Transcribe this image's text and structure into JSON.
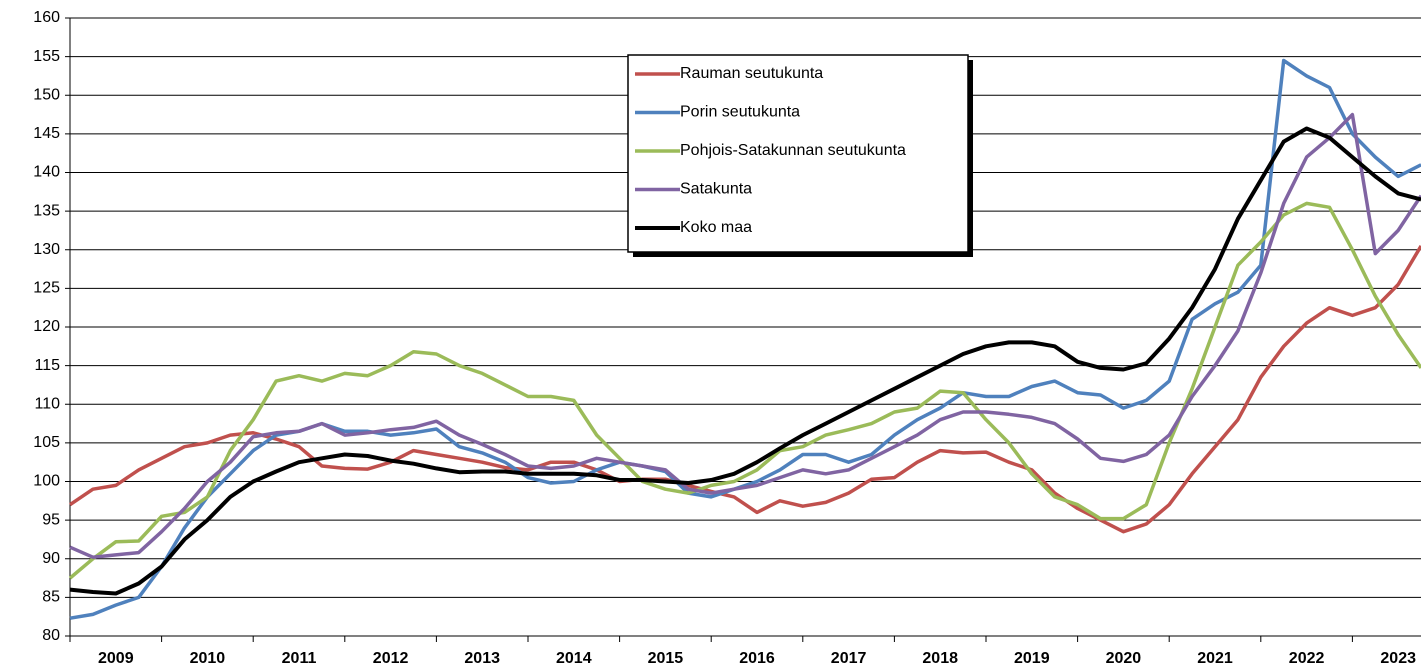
{
  "chart_data": {
    "type": "line",
    "categories": [
      "2009",
      null,
      null,
      null,
      "2010",
      null,
      null,
      null,
      "2011",
      null,
      null,
      null,
      "2012",
      null,
      null,
      null,
      "2013",
      null,
      null,
      null,
      "2014",
      null,
      null,
      null,
      "2015",
      null,
      null,
      null,
      "2016",
      null,
      null,
      null,
      "2017",
      null,
      null,
      null,
      "2018",
      null,
      null,
      null,
      "2019",
      null,
      null,
      null,
      "2020",
      null,
      null,
      null,
      "2021",
      null,
      null,
      null,
      "2022",
      null,
      null,
      null,
      "2023",
      null,
      null,
      null
    ],
    "series": [
      {
        "name": "Rauman seutukunta",
        "color": "#c0504d",
        "values": [
          97,
          99,
          99.5,
          101.5,
          103,
          104.5,
          105,
          106,
          106.3,
          105.5,
          104.5,
          102,
          101.7,
          101.6,
          102.5,
          104,
          103.5,
          103,
          102.5,
          101.8,
          101.5,
          102.5,
          102.5,
          101.5,
          100,
          100.3,
          100.3,
          99.5,
          98.7,
          98,
          96,
          97.5,
          96.8,
          97.3,
          98.5,
          100.3,
          100.5,
          102.5,
          104,
          103.7,
          103.8,
          102.5,
          101.5,
          98.5,
          96.5,
          95,
          93.5,
          94.5,
          97,
          101,
          104.5,
          108,
          113.5,
          117.5,
          120.5,
          122.5,
          121.5,
          122.5,
          125.5,
          130.5
        ]
      },
      {
        "name": "Porin seutukunta",
        "color": "#4f81bd",
        "values": [
          82.3,
          82.8,
          84,
          85,
          89,
          94,
          98,
          101,
          104,
          106,
          106.5,
          107.5,
          106.5,
          106.5,
          106,
          106.3,
          106.8,
          104.5,
          103.7,
          102.5,
          100.5,
          99.8,
          100,
          101.5,
          102.5,
          102,
          101.3,
          98.5,
          98,
          99,
          100,
          101.5,
          103.5,
          103.5,
          102.5,
          103.5,
          106,
          108,
          109.5,
          111.5,
          111,
          111,
          112.3,
          113,
          111.5,
          111.2,
          109.5,
          110.5,
          113,
          121,
          123,
          124.5,
          128,
          154.5,
          152.5,
          151,
          145,
          142,
          139.5,
          141
        ]
      },
      {
        "name": "Pohjois-Satakunnan seutukunta",
        "color": "#9bbb59",
        "values": [
          87.5,
          90,
          92.2,
          92.3,
          95.5,
          96,
          98,
          104,
          108,
          113,
          113.7,
          113,
          114,
          113.7,
          115,
          116.8,
          116.5,
          115,
          114,
          112.5,
          111,
          111,
          110.5,
          106,
          103,
          100,
          99,
          98.5,
          99.5,
          100,
          101.5,
          104,
          104.5,
          106,
          106.7,
          107.5,
          109,
          109.5,
          111.7,
          111.5,
          108,
          105,
          101,
          98,
          97,
          95.2,
          95.2,
          97,
          105,
          112,
          120,
          128,
          131,
          134.5,
          136,
          135.5,
          130,
          124,
          119,
          114.7
        ]
      },
      {
        "name": "Satakunta",
        "color": "#8064a2",
        "values": [
          91.5,
          90.2,
          90.5,
          90.8,
          93.5,
          96.5,
          100,
          102.5,
          105.8,
          106.3,
          106.5,
          107.5,
          106,
          106.3,
          106.7,
          107,
          107.8,
          106,
          104.8,
          103.5,
          102,
          101.7,
          102,
          103,
          102.5,
          102,
          101.5,
          99,
          98.5,
          99,
          99.5,
          100.5,
          101.5,
          101,
          101.5,
          103,
          104.5,
          106,
          108,
          109,
          109,
          108.7,
          108.3,
          107.5,
          105.5,
          103,
          102.6,
          103.5,
          106,
          111,
          115,
          119.5,
          127,
          136,
          142,
          144.5,
          147.5,
          129.5,
          132.5,
          137
        ]
      },
      {
        "name": "Koko maa",
        "color": "#000000",
        "values": [
          86,
          85.7,
          85.5,
          86.8,
          89,
          92.5,
          95,
          98,
          100,
          101.3,
          102.5,
          103,
          103.5,
          103.3,
          102.7,
          102.3,
          101.7,
          101.2,
          101.3,
          101.3,
          101,
          101,
          101,
          100.8,
          100.2,
          100.2,
          100,
          99.8,
          100.2,
          101,
          102.5,
          104.3,
          106,
          107.5,
          109,
          110.5,
          112,
          113.5,
          115,
          116.5,
          117.5,
          118,
          118,
          117.5,
          115.5,
          114.7,
          114.5,
          115.3,
          118.5,
          122.5,
          127.5,
          134,
          139,
          144,
          145.7,
          144.5,
          142,
          139.5,
          137.3,
          136.5
        ]
      }
    ],
    "ylim": [
      80,
      160
    ],
    "yticks": [
      80,
      85,
      90,
      95,
      100,
      105,
      110,
      115,
      120,
      125,
      130,
      135,
      140,
      145,
      150,
      155,
      160
    ],
    "grid": true,
    "legend": "upper center"
  }
}
